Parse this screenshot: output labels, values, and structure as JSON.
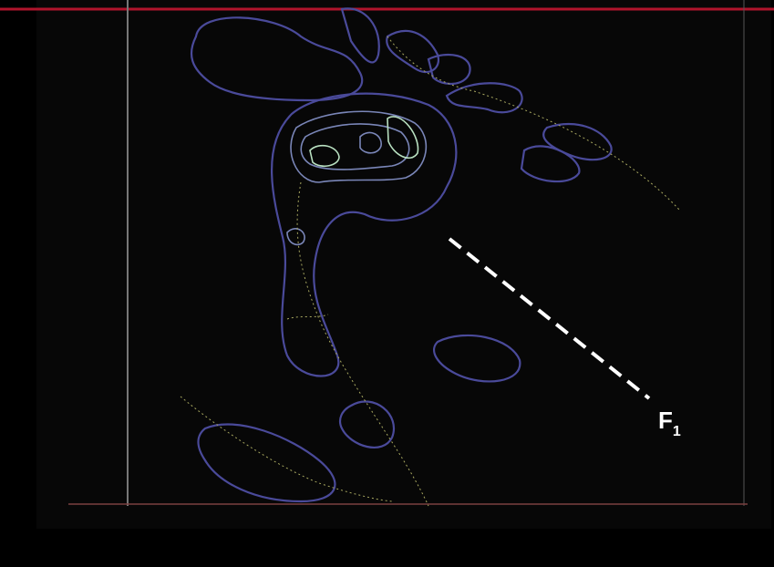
{
  "annotation": {
    "letter": "F",
    "subscript": "1"
  }
}
